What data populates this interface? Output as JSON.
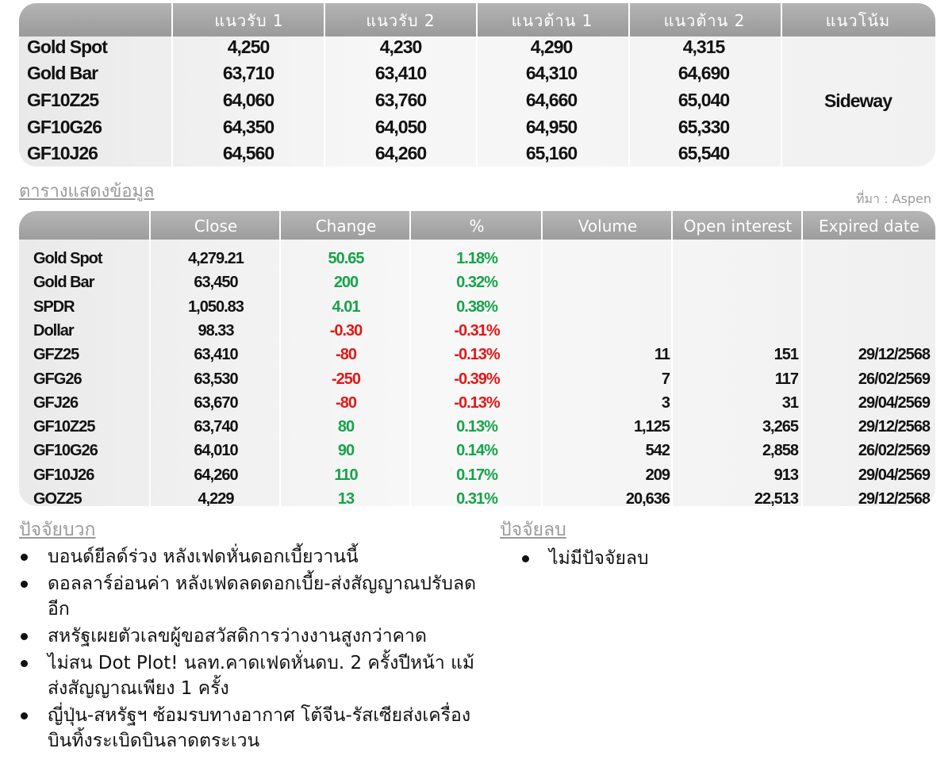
{
  "levels": {
    "headers": [
      "แนวรับ 1",
      "แนวรับ 2",
      "แนวต้าน 1",
      "แนวต้าน 2",
      "แนวโน้ม"
    ],
    "rows": [
      {
        "name": "Gold Spot",
        "s1": "4,250",
        "s2": "4,230",
        "r1": "4,290",
        "r2": "4,315"
      },
      {
        "name": "Gold Bar",
        "s1": "63,710",
        "s2": "63,410",
        "r1": "64,310",
        "r2": "64,690"
      },
      {
        "name": "GF10Z25",
        "s1": "64,060",
        "s2": "63,760",
        "r1": "64,660",
        "r2": "65,040"
      },
      {
        "name": "GF10G26",
        "s1": "64,350",
        "s2": "64,050",
        "r1": "64,950",
        "r2": "65,330"
      },
      {
        "name": "GF10J26",
        "s1": "64,560",
        "s2": "64,260",
        "r1": "65,160",
        "r2": "65,540"
      }
    ],
    "trend": "Sideway"
  },
  "data_table": {
    "title": "ตารางแสดงข้อมูล",
    "source": "ที่มา : Aspen",
    "headers": [
      "Close",
      "Change",
      "%",
      "Volume",
      "Open interest",
      "Expired date"
    ],
    "rows": [
      {
        "name": "Gold Spot",
        "close": "4,279.21",
        "change": "50.65",
        "pct": "1.18%",
        "volume": "",
        "oi": "",
        "expiry": "",
        "dir": "pos"
      },
      {
        "name": "Gold Bar",
        "close": "63,450",
        "change": "200",
        "pct": "0.32%",
        "volume": "",
        "oi": "",
        "expiry": "",
        "dir": "pos"
      },
      {
        "name": "SPDR",
        "close": "1,050.83",
        "change": "4.01",
        "pct": "0.38%",
        "volume": "",
        "oi": "",
        "expiry": "",
        "dir": "pos"
      },
      {
        "name": "Dollar",
        "close": "98.33",
        "change": "-0.30",
        "pct": "-0.31%",
        "volume": "",
        "oi": "",
        "expiry": "",
        "dir": "neg"
      },
      {
        "name": "GFZ25",
        "close": "63,410",
        "change": "-80",
        "pct": "-0.13%",
        "volume": "11",
        "oi": "151",
        "expiry": "29/12/2568",
        "dir": "neg"
      },
      {
        "name": "GFG26",
        "close": "63,530",
        "change": "-250",
        "pct": "-0.39%",
        "volume": "7",
        "oi": "117",
        "expiry": "26/02/2569",
        "dir": "neg"
      },
      {
        "name": "GFJ26",
        "close": "63,670",
        "change": "-80",
        "pct": "-0.13%",
        "volume": "3",
        "oi": "31",
        "expiry": "29/04/2569",
        "dir": "neg"
      },
      {
        "name": "GF10Z25",
        "close": "63,740",
        "change": "80",
        "pct": "0.13%",
        "volume": "1,125",
        "oi": "3,265",
        "expiry": "29/12/2568",
        "dir": "pos"
      },
      {
        "name": "GF10G26",
        "close": "64,010",
        "change": "90",
        "pct": "0.14%",
        "volume": "542",
        "oi": "2,858",
        "expiry": "26/02/2569",
        "dir": "pos"
      },
      {
        "name": "GF10J26",
        "close": "64,260",
        "change": "110",
        "pct": "0.17%",
        "volume": "209",
        "oi": "913",
        "expiry": "29/04/2569",
        "dir": "pos"
      },
      {
        "name": "GOZ25",
        "close": "4,229",
        "change": "13",
        "pct": "0.31%",
        "volume": "20,636",
        "oi": "22,513",
        "expiry": "29/12/2568",
        "dir": "pos"
      }
    ],
    "colors": {
      "positive": "#16a34a",
      "negative": "#e01818"
    }
  },
  "factors": {
    "positive_title": "ปัจจัยบวก",
    "positive": [
      "บอนด์ยีลด์ร่วง หลังเฟดหั่นดอกเบี้ยวานนี้",
      "ดอลลาร์อ่อนค่า หลังเฟดลดดอกเบี้ย-ส่งสัญญาณปรับลดอีก",
      "สหรัฐเผยตัวเลขผู้ขอสวัสดิการว่างงานสูงกว่าคาด",
      "ไม่สน Dot Plot! นลท.คาดเฟดหั่นดบ. 2 ครั้งปีหน้า แม้ส่งสัญญาณเพียง 1 ครั้ง",
      "ญี่ปุ่น-สหรัฐฯ ซ้อมรบทางอากาศ โต้จีน-รัสเซียส่งเครื่องบินทิ้งระเบิดบินลาดตระเวน"
    ],
    "negative_title": "ปัจจัยลบ",
    "negative": [
      "ไม่มีปัจจัยลบ"
    ]
  }
}
